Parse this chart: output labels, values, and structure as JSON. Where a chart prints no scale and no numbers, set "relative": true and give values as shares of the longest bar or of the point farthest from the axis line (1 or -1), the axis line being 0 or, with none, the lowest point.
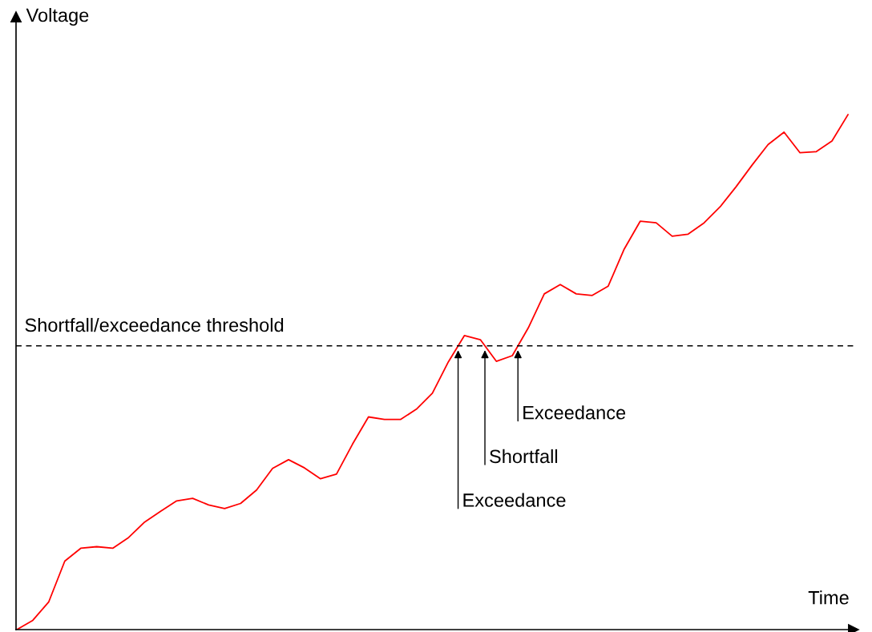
{
  "chart_data": {
    "type": "line",
    "relative": true,
    "xlabel": "Time",
    "ylabel": "Voltage",
    "categories": [
      null,
      null,
      null,
      null,
      null,
      null,
      null,
      null,
      null,
      null,
      null,
      null,
      null,
      null,
      null,
      null,
      null,
      null,
      null,
      null,
      null,
      null,
      null,
      null,
      null,
      null,
      null,
      null,
      null,
      null,
      null,
      null,
      null,
      null,
      null,
      null,
      null,
      null,
      null,
      null,
      null,
      null,
      null,
      null,
      null,
      null,
      null,
      null,
      null,
      null,
      null,
      null,
      null
    ],
    "series": [
      {
        "color": "#ff0000",
        "values": [
          0,
          0.018,
          0.054,
          0.133,
          0.158,
          0.161,
          0.158,
          0.179,
          0.209,
          0.23,
          0.25,
          0.255,
          0.242,
          0.235,
          0.245,
          0.271,
          0.313,
          0.33,
          0.314,
          0.293,
          0.302,
          0.36,
          0.413,
          0.408,
          0.408,
          0.428,
          0.459,
          0.52,
          0.571,
          0.563,
          0.521,
          0.532,
          0.586,
          0.652,
          0.67,
          0.652,
          0.649,
          0.667,
          0.739,
          0.793,
          0.79,
          0.764,
          0.768,
          0.79,
          0.821,
          0.86,
          0.902,
          0.942,
          0.966,
          0.926,
          0.928,
          0.949,
          1
        ]
      }
    ],
    "ref_lines": [
      {
        "axis": "y",
        "value": 0.551,
        "label": "Shortfall/exceedance threshold",
        "color": "#000000",
        "line_style": "dashed"
      }
    ],
    "annotations": [
      "Exceedance",
      "Shortfall",
      "Exceedance"
    ],
    "legend": false,
    "marker": "none",
    "line_style": "solid"
  }
}
